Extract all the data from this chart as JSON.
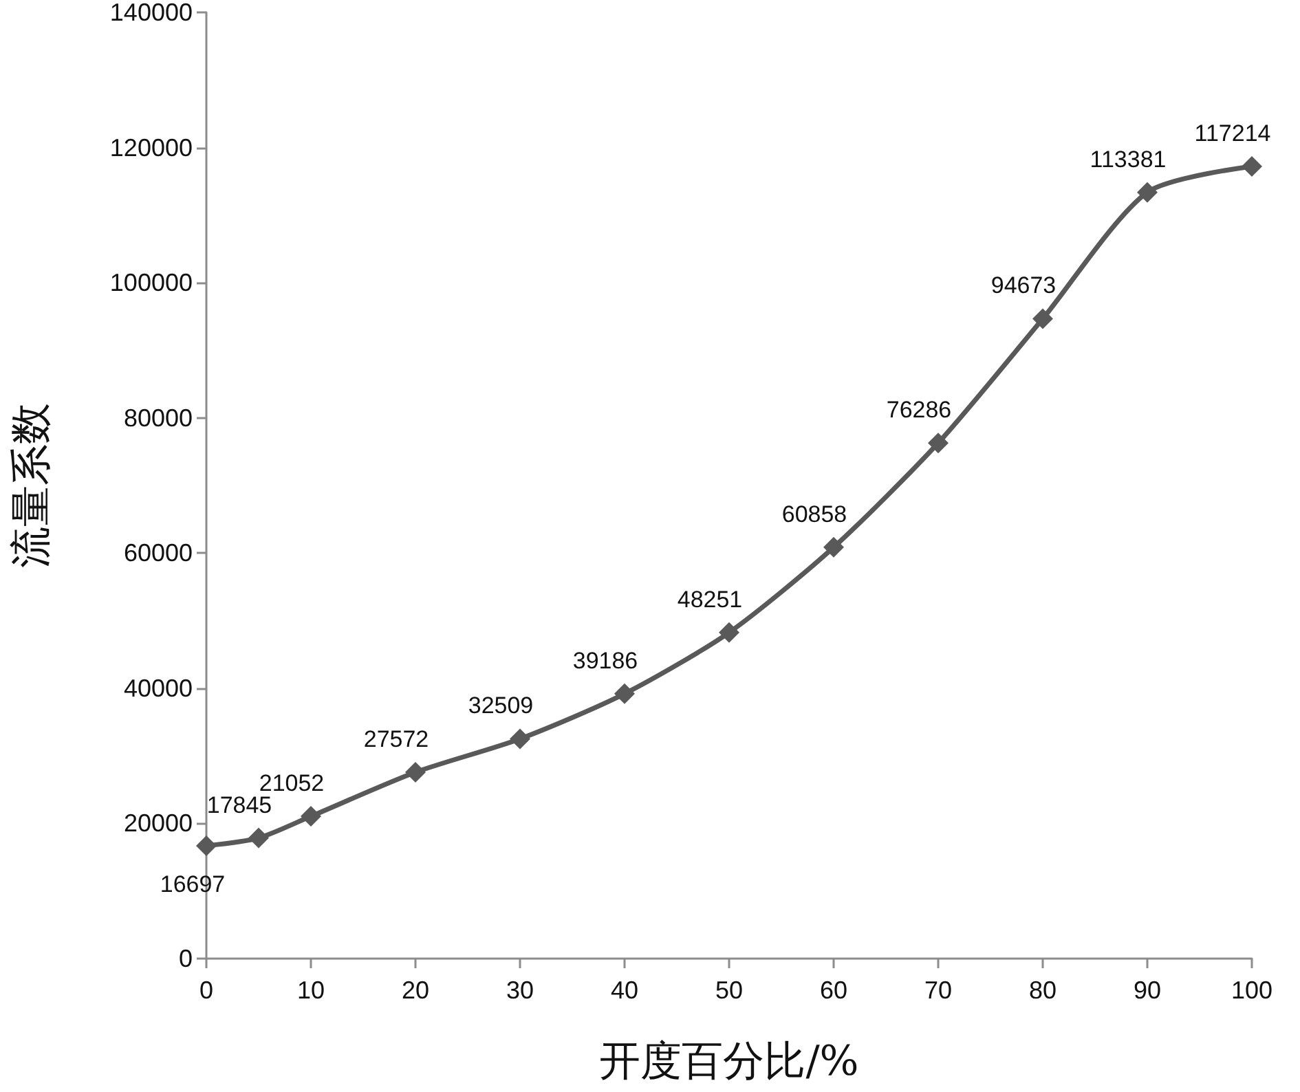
{
  "chart_data": {
    "type": "line",
    "xlabel": "开度百分比/%",
    "ylabel": "流量系数",
    "x": [
      0,
      5,
      10,
      20,
      30,
      40,
      50,
      60,
      70,
      80,
      90,
      100
    ],
    "series": [
      {
        "color": "#595959",
        "values": [
          16697,
          17845,
          21052,
          27572,
          32509,
          39186,
          48251,
          60858,
          76286,
          94673,
          113381,
          117214
        ]
      }
    ],
    "xlim": [
      0,
      100
    ],
    "xticks": [
      0,
      10,
      20,
      30,
      40,
      50,
      60,
      70,
      80,
      90,
      100
    ],
    "ylim": [
      0,
      140000
    ],
    "yticks": [
      0,
      20000,
      40000,
      60000,
      80000,
      100000,
      120000,
      140000
    ],
    "grid": false,
    "marker": "diamond",
    "line_style": "solid",
    "data_labels": true
  }
}
